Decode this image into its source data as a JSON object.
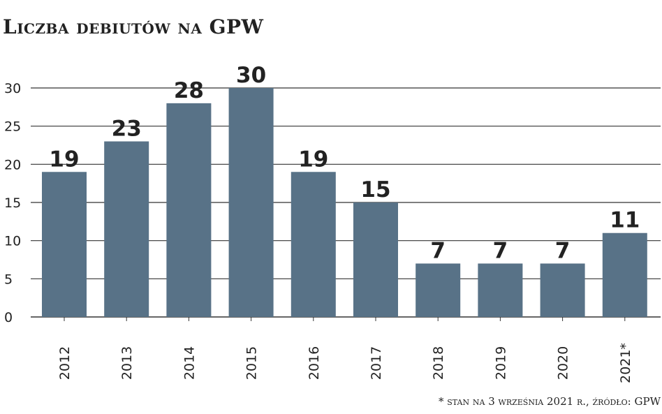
{
  "chart_data": {
    "type": "bar",
    "title": "Liczba debiutów na GPW",
    "categories": [
      "2012",
      "2013",
      "2014",
      "2015",
      "2016",
      "2017",
      "2018",
      "2019",
      "2020",
      "2021*"
    ],
    "values": [
      19,
      23,
      28,
      30,
      19,
      15,
      7,
      7,
      7,
      11
    ],
    "yticks": [
      "0",
      "5",
      "10",
      "15",
      "20",
      "25",
      "30"
    ],
    "ylim": [
      0,
      30
    ],
    "grid": true,
    "bar_color": "#587287",
    "footnote": "* stan na 3 września 2021 r., źródło: GPW"
  }
}
